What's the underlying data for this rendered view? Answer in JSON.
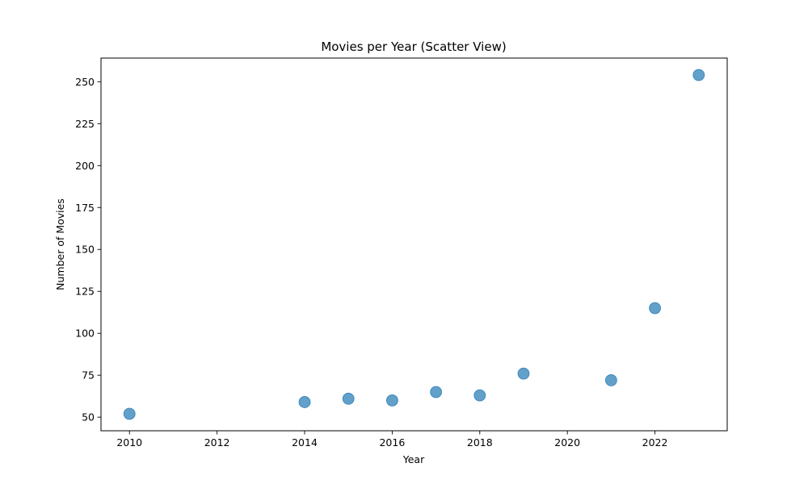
{
  "chart_data": {
    "type": "scatter",
    "title": "Movies per Year (Scatter View)",
    "xlabel": "Year",
    "ylabel": "Number of Movies",
    "x": [
      2010,
      2014,
      2015,
      2016,
      2017,
      2018,
      2019,
      2021,
      2022,
      2023
    ],
    "y": [
      52,
      59,
      61,
      60,
      65,
      63,
      76,
      72,
      115,
      254
    ],
    "xlim": [
      2009.35,
      2023.65
    ],
    "ylim": [
      41.9,
      264.1
    ],
    "xticks": [
      2010,
      2012,
      2014,
      2016,
      2018,
      2020,
      2022
    ],
    "xtick_labels": [
      "2010",
      "2012",
      "2014",
      "2016",
      "2018",
      "2020",
      "2022"
    ],
    "yticks": [
      50,
      75,
      100,
      125,
      150,
      175,
      200,
      225,
      250
    ],
    "ytick_labels": [
      "50",
      "75",
      "100",
      "125",
      "150",
      "175",
      "200",
      "225",
      "250"
    ],
    "grid": false,
    "marker_color": "#1f77b4",
    "marker_alpha": 0.7
  }
}
